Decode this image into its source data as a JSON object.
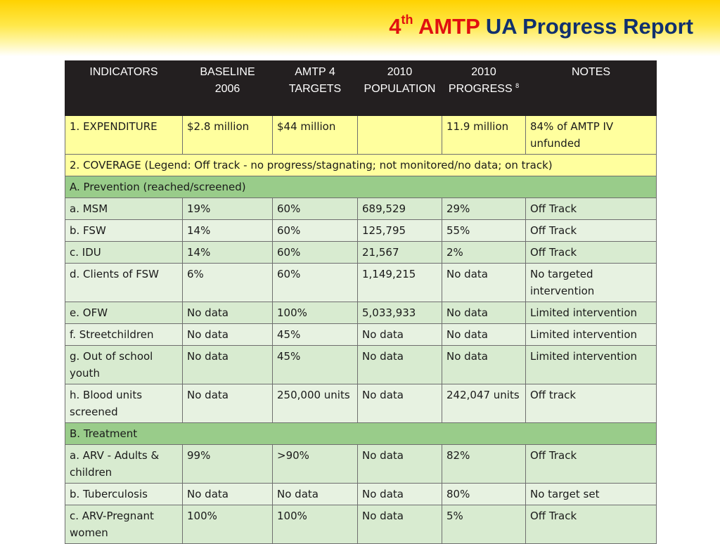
{
  "title": {
    "num": "4",
    "sup": "th",
    "org": "AMTP",
    "rest": "UA Progress Report"
  },
  "table": {
    "headers": [
      {
        "line1": "INDICATORS",
        "line2": ""
      },
      {
        "line1": "BASELINE",
        "line2": "2006"
      },
      {
        "line1": "AMTP 4",
        "line2": "TARGETS"
      },
      {
        "line1": "2010",
        "line2": "POPULATION"
      },
      {
        "line1": "2010",
        "line2": "PROGRESS",
        "sup": "8"
      },
      {
        "line1": "NOTES",
        "line2": ""
      }
    ],
    "expenditure": [
      "1. EXPENDITURE",
      "$2.8 million",
      "$44 million",
      "",
      "11.9 million",
      "84% of AMTP IV unfunded"
    ],
    "coverage": "2. COVERAGE  (Legend: Off track - no progress/stagnating; not monitored/no data;   on track)",
    "prevention_title": "A. Prevention (reached/screened)",
    "prevention_rows": [
      [
        "a. MSM",
        "19%",
        "60%",
        "689,529",
        "29%",
        "Off Track"
      ],
      [
        "b. FSW",
        "14%",
        "60%",
        "125,795",
        "55%",
        "Off Track"
      ],
      [
        " c. IDU",
        "14%",
        "60%",
        "21,567",
        "2%",
        "Off Track"
      ],
      [
        "d. Clients of FSW",
        "6%",
        "60%",
        "1,149,215",
        "No data",
        "No targeted intervention"
      ],
      [
        "e. OFW",
        "No data",
        "100%",
        "5,033,933",
        "No data",
        "Limited intervention"
      ],
      [
        "f. Streetchildren",
        "No data",
        "45%",
        "No data",
        "No data",
        "Limited intervention"
      ],
      [
        "g. Out of school youth",
        "No data",
        "45%",
        "No data",
        "No data",
        "Limited intervention"
      ],
      [
        "h. Blood units screened",
        "No data",
        "250,000 units",
        "No data",
        "242,047 units",
        "Off track"
      ]
    ],
    "treatment_title": "B. Treatment",
    "treatment_rows": [
      [
        "a. ARV - Adults & children",
        "99%",
        ">90%",
        "No data",
        "82%",
        "Off Track"
      ],
      [
        "b. Tuberculosis",
        "No data",
        "No data",
        "No data",
        "80%",
        "No target set"
      ],
      [
        "c. ARV-Pregnant women",
        "100%",
        "100%",
        "No data",
        "5%",
        "Off Track"
      ]
    ]
  }
}
